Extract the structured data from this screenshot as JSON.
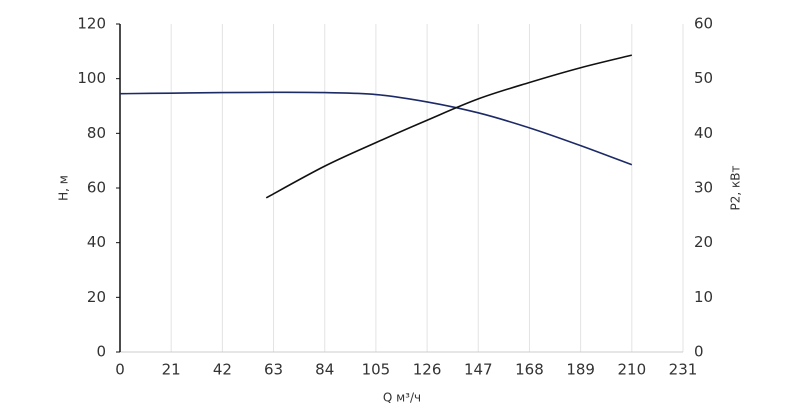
{
  "chart_data": {
    "type": "line",
    "x_label": "Q м³/ч",
    "y_label": "H, м",
    "y2_label": "P2, кВт",
    "xlim": [
      0,
      231
    ],
    "xticks": [
      0,
      21,
      42,
      63,
      84,
      105,
      126,
      147,
      168,
      189,
      210,
      231
    ],
    "ylim": [
      0,
      120
    ],
    "yticks": [
      0,
      20,
      40,
      60,
      80,
      100,
      120
    ],
    "y2lim": [
      0,
      60
    ],
    "y2ticks": [
      0,
      10,
      20,
      30,
      40,
      50,
      60
    ],
    "grid": true,
    "series": [
      {
        "name": "H",
        "color": "#1c2a66",
        "axis": "y",
        "x": [
          0,
          21,
          42,
          63,
          84,
          105,
          126,
          147,
          168,
          189,
          210
        ],
        "values": [
          94.5,
          94.7,
          94.9,
          95,
          94.9,
          94.2,
          91.5,
          87.5,
          82,
          75.5,
          68.5
        ]
      },
      {
        "name": "P2",
        "color": "#111111",
        "axis": "y2",
        "x": [
          60,
          84,
          105,
          126,
          147,
          168,
          189,
          210
        ],
        "values": [
          28.2,
          34,
          38.3,
          42.4,
          46.3,
          49.3,
          52,
          54.3
        ]
      }
    ]
  }
}
